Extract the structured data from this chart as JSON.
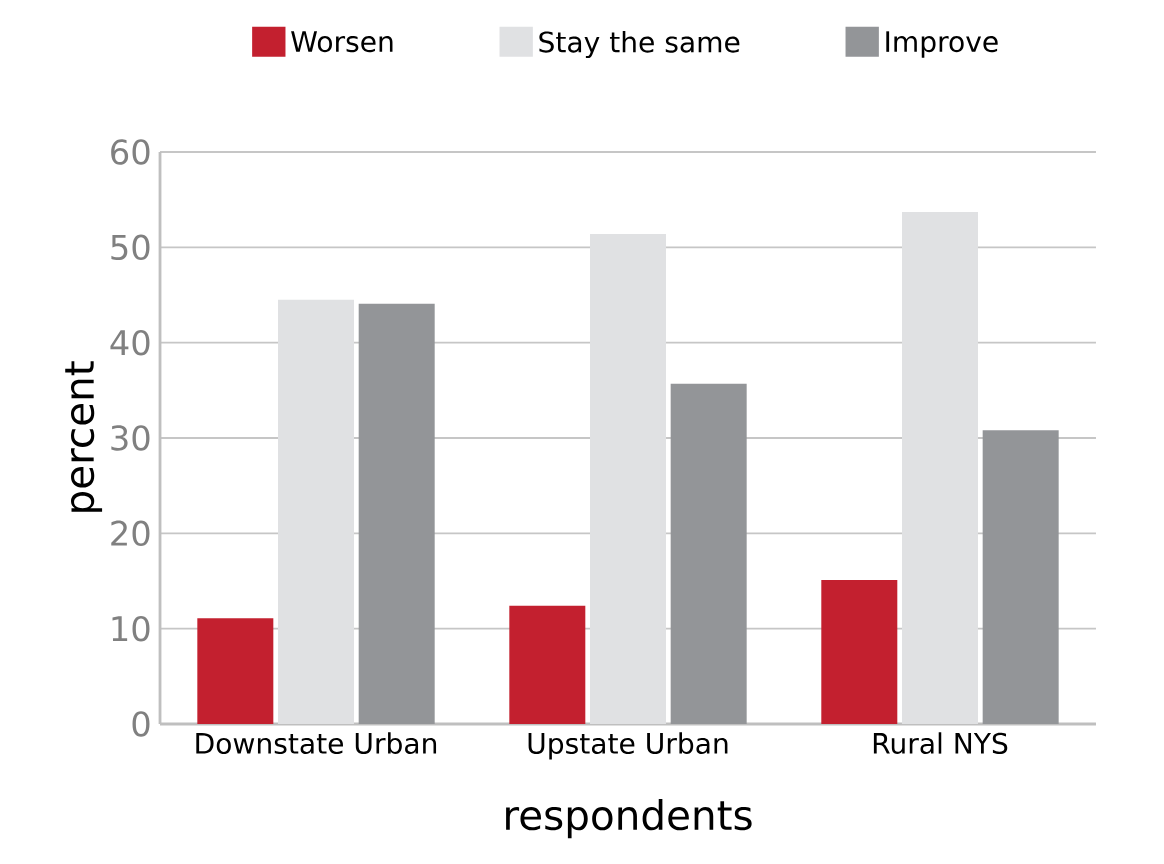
{
  "chart_data": {
    "type": "bar",
    "xlabel": "respondents",
    "ylabel": "percent",
    "categories": [
      "Downstate Urban",
      "Upstate Urban",
      "Rural NYS"
    ],
    "series": [
      {
        "name": "Worsen",
        "color": "#c3202f",
        "values": [
          11.1,
          12.4,
          15.1
        ]
      },
      {
        "name": "Stay the same",
        "color": "#e0e1e3",
        "values": [
          44.5,
          51.4,
          53.7
        ]
      },
      {
        "name": "Improve",
        "color": "#939598",
        "values": [
          44.1,
          35.7,
          30.8
        ]
      }
    ],
    "ylim": [
      0,
      60
    ],
    "yticks": [
      0,
      10,
      20,
      30,
      40,
      50,
      60
    ],
    "grid": "y",
    "legend": "top"
  }
}
